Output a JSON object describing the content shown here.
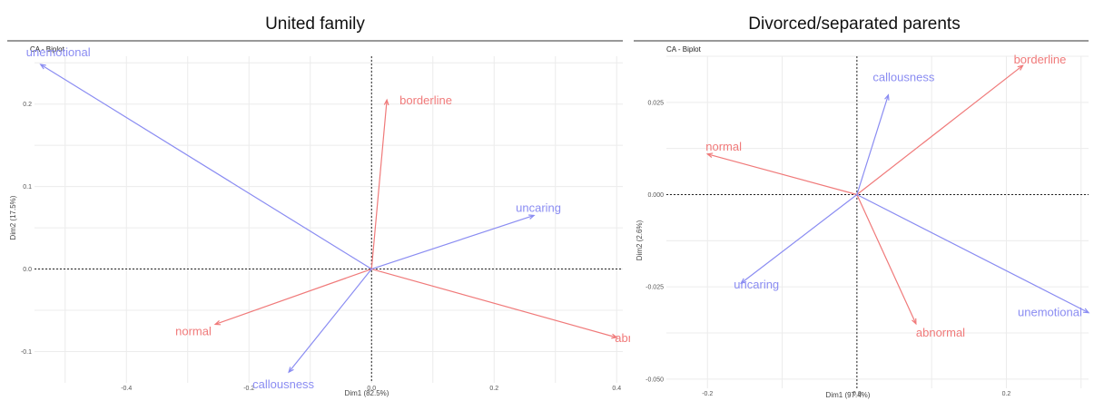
{
  "chart_data": [
    {
      "type": "scatter",
      "title": "United family",
      "subtitle": "CA - Biplot",
      "xlabel": "Dim1 (82.5%)",
      "ylabel": "Dim2 (17.5%)",
      "xlim": [
        -0.55,
        0.41
      ],
      "ylim": [
        -0.138,
        0.258
      ],
      "xticks": [
        -0.4,
        -0.2,
        0.0,
        0.2,
        0.4
      ],
      "xtick_labels": [
        "-0.4",
        "-0.2",
        "0.0",
        "0.2",
        "0.4"
      ],
      "yticks": [
        -0.1,
        0.0,
        0.1,
        0.2
      ],
      "ytick_labels": [
        "-0.1",
        "0.0",
        "0.1",
        "0.2"
      ],
      "grid": true,
      "series": [
        {
          "name": "red",
          "color": "#f07a7a",
          "points": [
            {
              "label": "borderline",
              "x": 0.025,
              "y": 0.205
            },
            {
              "label": "abnormal",
              "x": 0.4,
              "y": -0.083
            },
            {
              "label": "normal",
              "x": -0.255,
              "y": -0.067
            }
          ]
        },
        {
          "name": "blue",
          "color": "#8a8cf2",
          "points": [
            {
              "label": "unemotional",
              "x": -0.54,
              "y": 0.248
            },
            {
              "label": "uncaring",
              "x": 0.265,
              "y": 0.065
            },
            {
              "label": "callousness",
              "x": -0.135,
              "y": -0.125
            }
          ]
        }
      ]
    },
    {
      "type": "scatter",
      "title": "Divorced/separated parents",
      "subtitle": "CA - Biplot",
      "xlabel": "Dim1 (97.4%)",
      "ylabel": "Dim2 (2.6%)",
      "xlim": [
        -0.255,
        0.31
      ],
      "ylim": [
        -0.0525,
        0.0375
      ],
      "xticks": [
        -0.2,
        0.0,
        0.2
      ],
      "xtick_labels": [
        "-0.2",
        "0.0",
        "0.2"
      ],
      "yticks": [
        -0.05,
        -0.025,
        0.0,
        0.025
      ],
      "ytick_labels": [
        "-0.050",
        "-0.025",
        "0.000",
        "0.025"
      ],
      "grid": true,
      "series": [
        {
          "name": "red",
          "color": "#f07a7a",
          "points": [
            {
              "label": "borderline",
              "x": 0.222,
              "y": 0.035
            },
            {
              "label": "normal",
              "x": -0.2,
              "y": 0.011
            },
            {
              "label": "abnormal",
              "x": 0.079,
              "y": -0.035
            }
          ]
        },
        {
          "name": "blue",
          "color": "#8a8cf2",
          "points": [
            {
              "label": "callousness",
              "x": 0.042,
              "y": 0.027
            },
            {
              "label": "uncaring",
              "x": -0.155,
              "y": -0.024
            },
            {
              "label": "unemotional",
              "x": 0.31,
              "y": -0.032
            }
          ]
        }
      ]
    }
  ]
}
